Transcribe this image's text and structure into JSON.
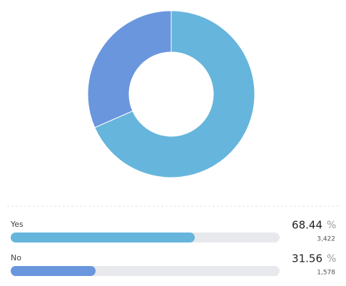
{
  "chart_data": {
    "type": "pie",
    "donut": true,
    "categories": [
      "Yes",
      "No"
    ],
    "values": [
      68.44,
      31.56
    ],
    "colors": [
      "#66b5dc",
      "#6a96dd"
    ],
    "unit": "%",
    "count_labels": [
      "3,422",
      "1,578"
    ],
    "xlim": [
      0,
      100
    ]
  }
}
